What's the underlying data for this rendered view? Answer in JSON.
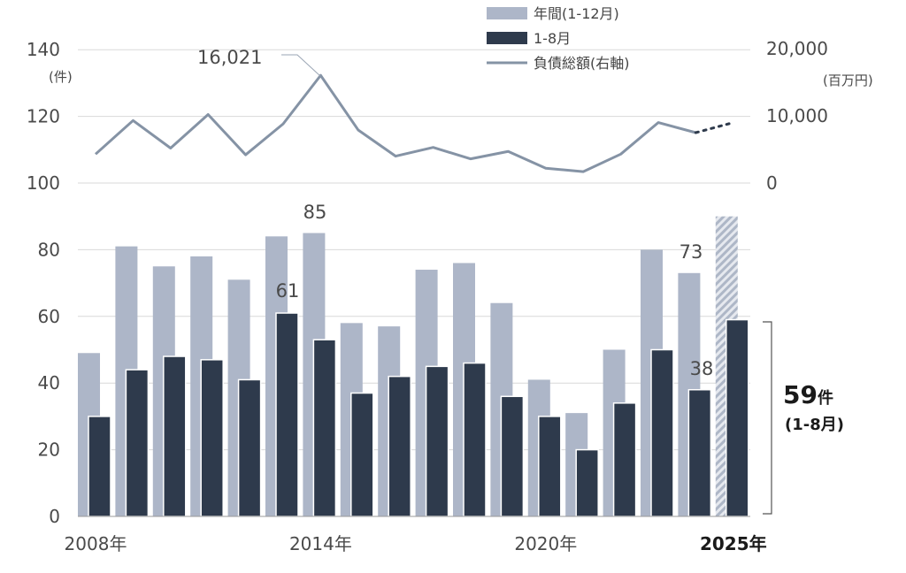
{
  "chart_data": {
    "type": "bar",
    "years": [
      2008,
      2009,
      2010,
      2011,
      2012,
      2013,
      2014,
      2015,
      2016,
      2017,
      2018,
      2019,
      2020,
      2021,
      2022,
      2023,
      2024,
      2025
    ],
    "series": [
      {
        "name": "年間(1-12月)",
        "type": "bar",
        "color": "#adb6c8",
        "values": [
          49,
          81,
          75,
          78,
          71,
          84,
          85,
          58,
          57,
          74,
          76,
          64,
          41,
          31,
          50,
          80,
          73,
          null
        ]
      },
      {
        "name": "1-8月",
        "type": "bar",
        "color": "#2e3a4c",
        "values": [
          30,
          44,
          48,
          47,
          41,
          61,
          53,
          37,
          42,
          45,
          46,
          36,
          30,
          20,
          34,
          50,
          38,
          59
        ]
      },
      {
        "name": "負債総額(右軸)",
        "type": "line",
        "axis": "right",
        "color": "#8593a5",
        "values": [
          4300,
          9300,
          5200,
          10200,
          4200,
          8800,
          16021,
          7900,
          4000,
          5300,
          3600,
          4700,
          2200,
          1700,
          4300,
          9000,
          7500,
          null
        ]
      }
    ],
    "projection_2025": {
      "annual_bar_estimate": 90,
      "line_dotted_end": 9000
    },
    "left_axis": {
      "min": 0,
      "max": 140,
      "ticks": [
        "0",
        "20",
        "40",
        "60",
        "80",
        "100",
        "120",
        "140"
      ],
      "unit": "(件)"
    },
    "right_axis": {
      "min": 0,
      "max": 20000,
      "ticks": [
        "0",
        "10,000",
        "20,000"
      ],
      "unit": "(百万円)"
    },
    "x_tick_labels": [
      {
        "year": 2008,
        "text": "2008年"
      },
      {
        "year": 2014,
        "text": "2014年"
      },
      {
        "year": 2020,
        "text": "2020年"
      },
      {
        "year": 2025,
        "text": "2025年",
        "bold": true
      }
    ],
    "annotations": {
      "peak_line": "16,021",
      "bar_2014_total": "85",
      "bar_2013_jan_aug": "61",
      "bar_2024_total": "73",
      "bar_2024_jan_aug": "38",
      "callout_value": "59",
      "callout_unit": "件",
      "callout_period": "(1-8月)"
    },
    "legend": [
      "年間(1-12月)",
      "1-8月",
      "負債総額(右軸)"
    ],
    "legend_position": "top-right",
    "grid": true
  }
}
